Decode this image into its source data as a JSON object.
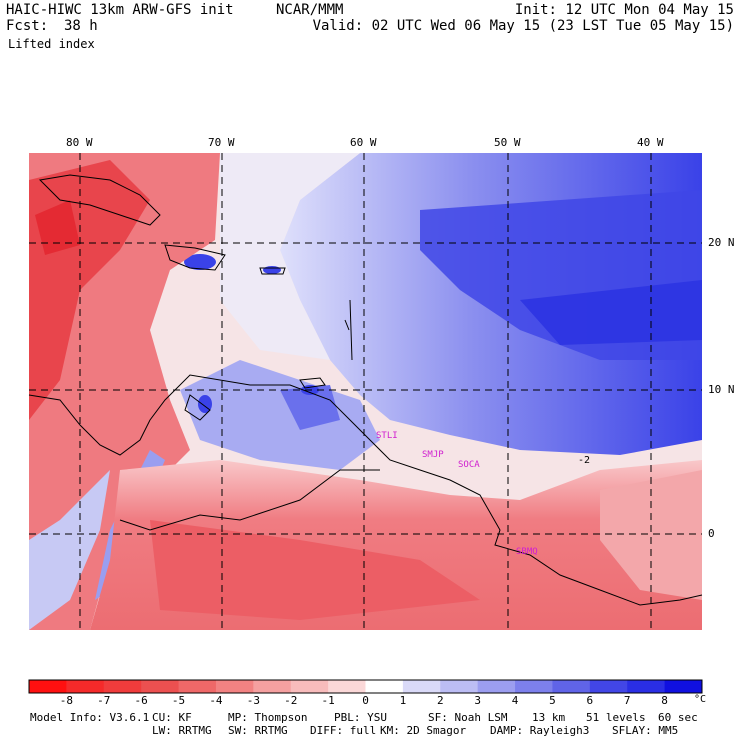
{
  "header": {
    "model_title": "HAIC-HIWC 13km ARW-GFS init",
    "org": "NCAR/MMM",
    "init": "Init: 12 UTC Mon 04 May 15",
    "fcst_label": "Fcst:",
    "fcst_value": "38 h",
    "valid": "Valid: 02 UTC Wed 06 May 15 (23 LST Tue 05 May 15)",
    "field": "Lifted index"
  },
  "map": {
    "lon_labels": [
      "80 W",
      "70 W",
      "60 W",
      "50 W",
      "40 W"
    ],
    "lat_labels": [
      "20 N",
      "10 N",
      "0"
    ],
    "stations": [
      "STLI",
      "SMJP",
      "SOCA",
      "SBMQ"
    ],
    "contour_label": "-2",
    "colors": {
      "warm_dark": "#e8303a",
      "warm_mid": "#f27a82",
      "warm_light": "#f9c6c8",
      "cold_light": "#dcdcfa",
      "cold_mid": "#7a80f0",
      "cold_dark": "#3a44e6",
      "station_text": "#d020d0"
    }
  },
  "colorbar": {
    "ticks": [
      "-8",
      "-7",
      "-6",
      "-5",
      "-4",
      "-3",
      "-2",
      "-1",
      "0",
      "1",
      "2",
      "3",
      "4",
      "5",
      "6",
      "7",
      "8"
    ],
    "unit": "°C",
    "colors": [
      "#ff1010",
      "#f52a2a",
      "#f03c3c",
      "#ec5050",
      "#ef6868",
      "#f28282",
      "#f5a0a0",
      "#f8bcbc",
      "#fbd8d8",
      "#ffffff",
      "#dadaf8",
      "#bcbdf4",
      "#9c9ef0",
      "#7d80ec",
      "#6064e8",
      "#4246e6",
      "#2a2ee4",
      "#1010e0"
    ]
  },
  "footer": {
    "line1": [
      "Model Info: V3.6.1",
      "CU: KF",
      "MP: Thompson",
      "PBL: YSU",
      "SF: Noah LSM",
      "13 km",
      "51 levels",
      "60 sec"
    ],
    "line2": [
      "LW: RRTMG",
      "SW: RRTMG",
      "DIFF: full",
      "KM: 2D Smagor",
      "DAMP: Rayleigh3",
      "SFLAY: MM5"
    ]
  }
}
